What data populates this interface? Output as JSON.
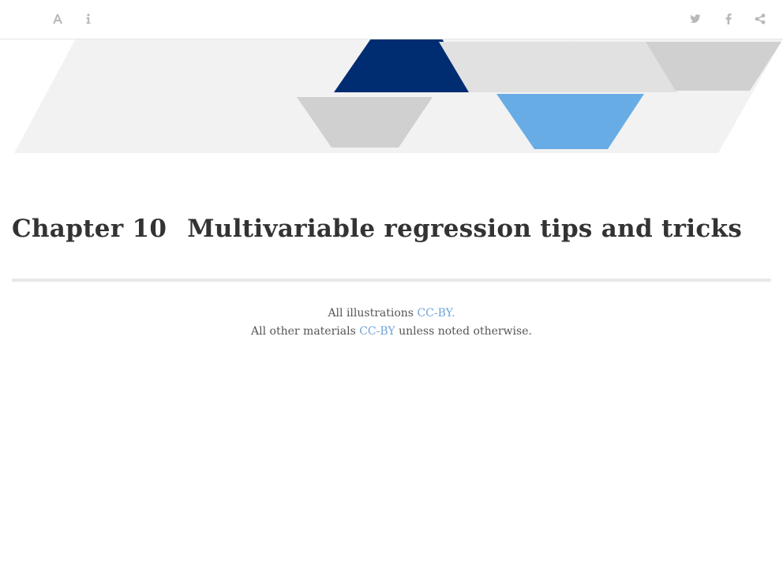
{
  "toolbar": {
    "left_icons": [
      "font-settings-icon",
      "info-icon"
    ],
    "right_icons": [
      "twitter-icon",
      "facebook-icon",
      "share-icon"
    ],
    "icon_color": "#b9b9b9"
  },
  "banner": {
    "colors": {
      "background": "#f2f2f2",
      "dark_blue": "#002d72",
      "light_blue": "#68ace5",
      "grey": "#d0d0d0",
      "light_grey": "#e1e1e1"
    }
  },
  "chapter": {
    "number": "Chapter 10",
    "title": "Multivariable regression tips and tricks"
  },
  "license": {
    "line1_prefix": "All illustrations",
    "line1_link": "CC-BY.",
    "line2_prefix": "All other materials",
    "line2_link": "CC-BY",
    "line2_suffix": "unless noted otherwise.",
    "link_color": "#6fa3d6"
  }
}
